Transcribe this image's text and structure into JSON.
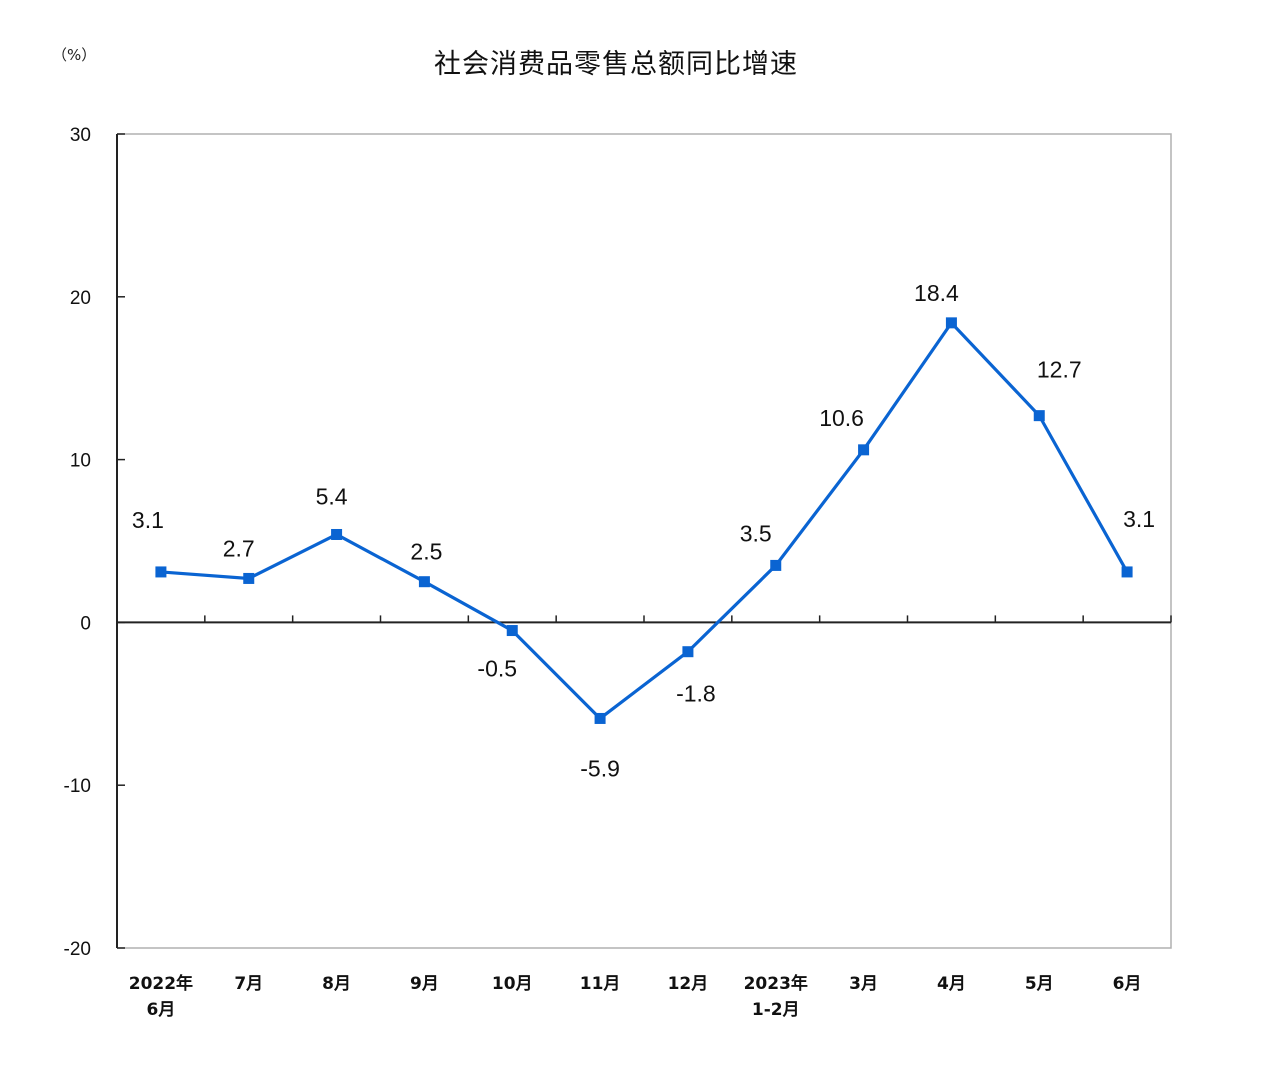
{
  "chart": {
    "unit_label": "（%）",
    "title": "社会消费品零售总额同比增速"
  },
  "colors": {
    "line": "#0A64D2",
    "axis": "#222222",
    "frame": "#B0B0B0"
  },
  "chart_data": {
    "type": "line",
    "title": "社会消费品零售总额同比增速",
    "xlabel": "",
    "ylabel": "（%）",
    "ylim": [
      -20,
      30
    ],
    "yticks": [
      30,
      20,
      10,
      0,
      -10,
      -20
    ],
    "grid": false,
    "legend": null,
    "categories": [
      "2022年\n6月",
      "7月",
      "8月",
      "9月",
      "10月",
      "11月",
      "12月",
      "2023年\n1-2月",
      "3月",
      "4月",
      "5月",
      "6月"
    ],
    "series": [
      {
        "name": "社会消费品零售总额同比增速",
        "values": [
          3.1,
          2.7,
          5.4,
          2.5,
          -0.5,
          -5.9,
          -1.8,
          3.5,
          10.6,
          18.4,
          12.7,
          3.1
        ],
        "labels": [
          "3.1",
          "2.7",
          "5.4",
          "2.5",
          "-0.5",
          "-5.9",
          "-1.8",
          "3.5",
          "10.6",
          "18.4",
          "12.7",
          "3.1"
        ]
      }
    ]
  }
}
